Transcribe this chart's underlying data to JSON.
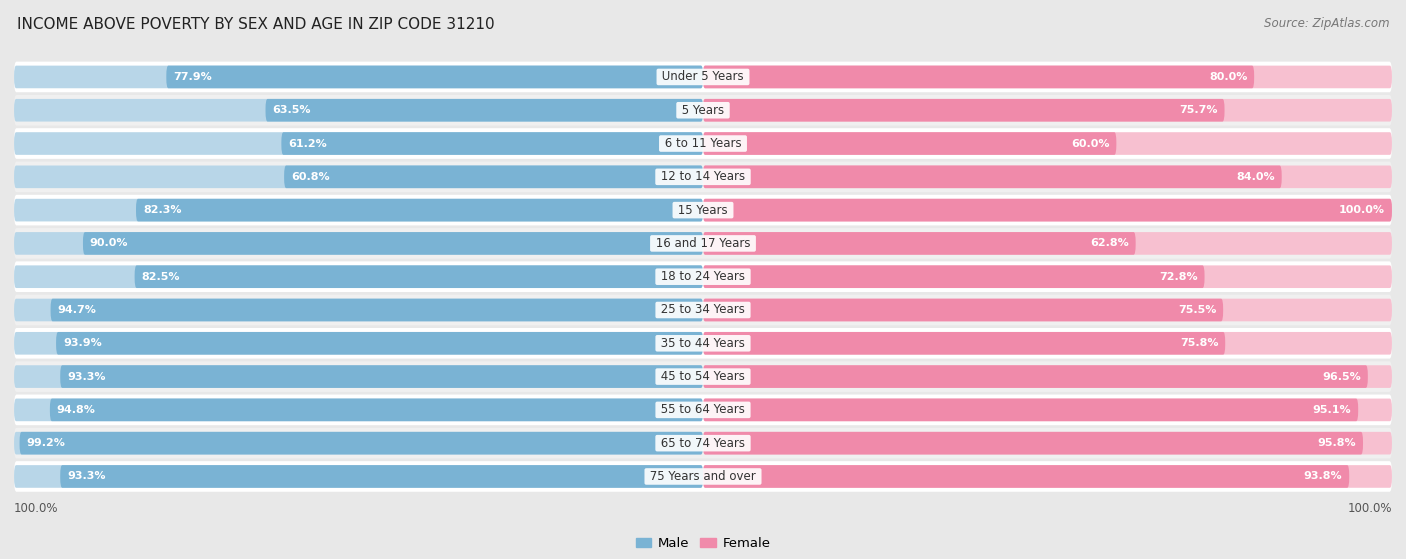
{
  "title": "INCOME ABOVE POVERTY BY SEX AND AGE IN ZIP CODE 31210",
  "source": "Source: ZipAtlas.com",
  "categories": [
    "Under 5 Years",
    "5 Years",
    "6 to 11 Years",
    "12 to 14 Years",
    "15 Years",
    "16 and 17 Years",
    "18 to 24 Years",
    "25 to 34 Years",
    "35 to 44 Years",
    "45 to 54 Years",
    "55 to 64 Years",
    "65 to 74 Years",
    "75 Years and over"
  ],
  "male_values": [
    77.9,
    63.5,
    61.2,
    60.8,
    82.3,
    90.0,
    82.5,
    94.7,
    93.9,
    93.3,
    94.8,
    99.2,
    93.3
  ],
  "female_values": [
    80.0,
    75.7,
    60.0,
    84.0,
    100.0,
    62.8,
    72.8,
    75.5,
    75.8,
    96.5,
    95.1,
    95.8,
    93.8
  ],
  "male_color": "#7ab3d4",
  "female_color": "#f08aaa",
  "male_color_light": "#b8d6e8",
  "female_color_light": "#f7c0d0",
  "male_label": "Male",
  "female_label": "Female",
  "background_color": "#e8e8e8",
  "row_color_even": "#ffffff",
  "row_color_odd": "#f0f0f0",
  "title_fontsize": 11,
  "source_fontsize": 8.5,
  "bar_label_fontsize": 8,
  "category_fontsize": 8.5
}
